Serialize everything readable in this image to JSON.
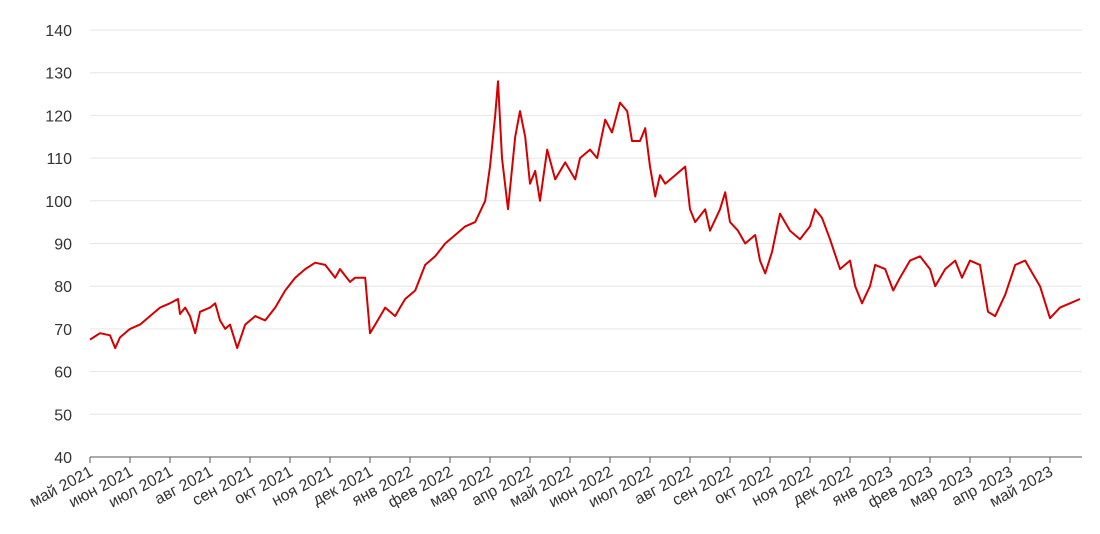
{
  "chart_data": {
    "type": "line",
    "color": "#d40000",
    "x": [
      0,
      0.25,
      0.5,
      0.63,
      0.75,
      1,
      1.25,
      1.5,
      1.75,
      2,
      2.2,
      2.25,
      2.38,
      2.5,
      2.63,
      2.75,
      3,
      3.13,
      3.25,
      3.38,
      3.5,
      3.68,
      3.88,
      4.13,
      4.38,
      4.63,
      4.88,
      5.13,
      5.38,
      5.63,
      5.88,
      6.13,
      6.25,
      6.5,
      6.63,
      6.88,
      7,
      7.13,
      7.38,
      7.63,
      7.75,
      7.88,
      8.13,
      8.38,
      8.63,
      8.88,
      9.13,
      9.38,
      9.63,
      9.88,
      10,
      10.13,
      10.2,
      10.3,
      10.45,
      10.63,
      10.75,
      10.88,
      11,
      11.13,
      11.25,
      11.43,
      11.63,
      11.88,
      12.13,
      12.25,
      12.5,
      12.68,
      12.88,
      13.05,
      13.25,
      13.43,
      13.55,
      13.75,
      13.88,
      14,
      14.13,
      14.25,
      14.38,
      14.63,
      14.88,
      15,
      15.13,
      15.38,
      15.5,
      15.75,
      15.88,
      16,
      16.2,
      16.38,
      16.63,
      16.75,
      16.88,
      17.05,
      17.25,
      17.5,
      17.75,
      18,
      18.13,
      18.3,
      18.5,
      18.75,
      19,
      19.13,
      19.3,
      19.5,
      19.63,
      19.88,
      20.08,
      20.25,
      20.5,
      20.75,
      21,
      21.13,
      21.38,
      21.63,
      21.8,
      22,
      22.25,
      22.45,
      22.63,
      22.88,
      23.13,
      23.38,
      23.5,
      23.75,
      24,
      24.25,
      24.5,
      24.75
    ],
    "values": [
      67.5,
      69,
      68.5,
      65.5,
      68,
      70,
      71,
      73,
      75,
      76,
      77,
      73.5,
      75,
      73,
      69,
      74,
      75,
      76,
      72,
      70,
      71,
      65.5,
      71,
      73,
      72,
      75,
      79,
      82,
      84,
      85.5,
      85,
      82,
      84,
      81,
      82,
      82,
      69,
      71,
      75,
      73,
      75,
      77,
      79,
      85,
      87,
      90,
      92,
      94,
      95,
      100,
      108,
      120,
      128,
      110,
      98,
      115,
      121,
      115,
      104,
      107,
      100,
      112,
      105,
      109,
      105,
      110,
      112,
      110,
      119,
      116,
      123,
      121,
      114,
      114,
      117,
      108,
      101,
      106,
      104,
      106,
      108,
      98,
      95,
      98,
      93,
      98,
      102,
      95,
      93,
      90,
      92,
      86,
      83,
      88,
      97,
      93,
      91,
      94,
      98,
      96,
      91,
      84,
      86,
      80,
      76,
      80,
      85,
      84,
      79,
      82,
      86,
      87,
      84,
      80,
      84,
      86,
      82,
      86,
      85,
      74,
      73,
      78,
      85,
      86,
      84,
      80,
      72.5,
      75,
      76,
      77
    ],
    "xlim": [
      0,
      24.8
    ],
    "xticks": [
      {
        "value": 0,
        "label": "май 2021"
      },
      {
        "value": 1,
        "label": "июн 2021"
      },
      {
        "value": 2,
        "label": "июл 2021"
      },
      {
        "value": 3,
        "label": "авг 2021"
      },
      {
        "value": 4,
        "label": "сен 2021"
      },
      {
        "value": 5,
        "label": "окт 2021"
      },
      {
        "value": 6,
        "label": "ноя 2021"
      },
      {
        "value": 7,
        "label": "дек 2021"
      },
      {
        "value": 8,
        "label": "янв 2022"
      },
      {
        "value": 9,
        "label": "фев 2022"
      },
      {
        "value": 10,
        "label": "мар 2022"
      },
      {
        "value": 11,
        "label": "апр 2022"
      },
      {
        "value": 12,
        "label": "май 2022"
      },
      {
        "value": 13,
        "label": "июн 2022"
      },
      {
        "value": 14,
        "label": "июл 2022"
      },
      {
        "value": 15,
        "label": "авг 2022"
      },
      {
        "value": 16,
        "label": "сен 2022"
      },
      {
        "value": 17,
        "label": "окт 2022"
      },
      {
        "value": 18,
        "label": "ноя 2022"
      },
      {
        "value": 19,
        "label": "дек 2022"
      },
      {
        "value": 20,
        "label": "янв 2023"
      },
      {
        "value": 21,
        "label": "фев 2023"
      },
      {
        "value": 22,
        "label": "мар 2023"
      },
      {
        "value": 23,
        "label": "апр 2023"
      },
      {
        "value": 24,
        "label": "май 2023"
      }
    ],
    "ylim": [
      40,
      140
    ],
    "yticks": [
      40,
      50,
      60,
      70,
      80,
      90,
      100,
      110,
      120,
      130,
      140
    ],
    "grid": true
  }
}
